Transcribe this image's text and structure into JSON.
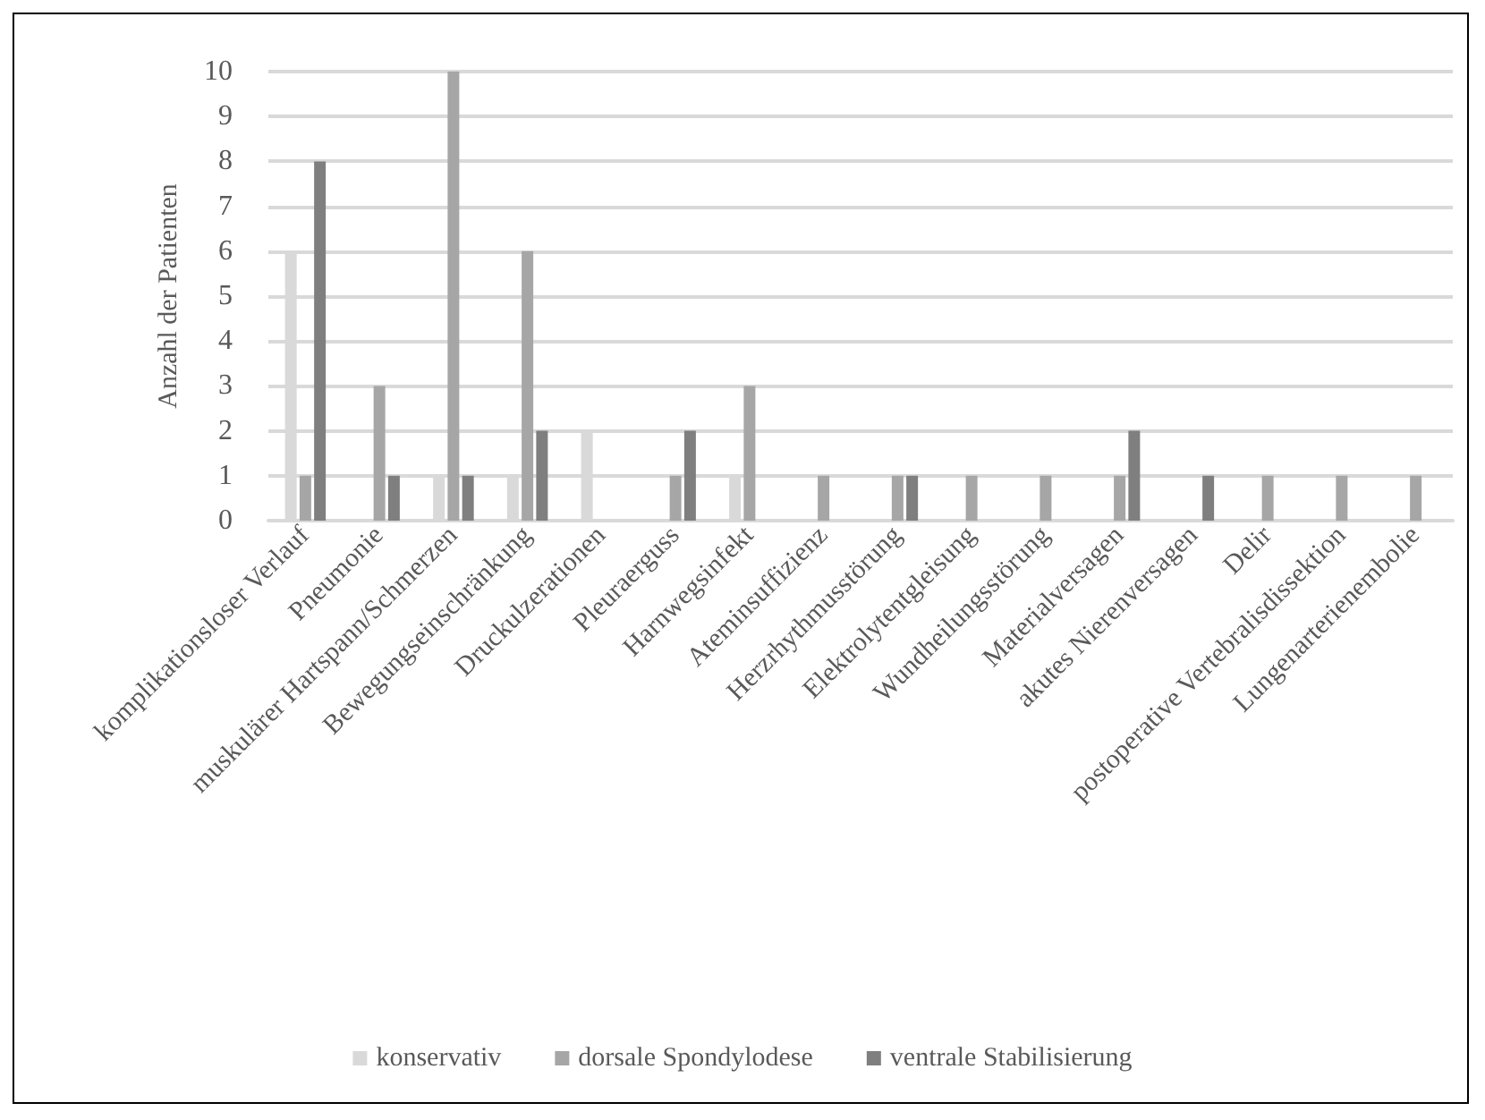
{
  "chart_data": {
    "type": "bar",
    "ylabel": "Anzahl der Patienten",
    "categories": [
      "komplikationsloser Verlauf",
      "Pneumonie",
      "muskulärer Hartspann/Schmerzen",
      "Bewegungseinschränkung",
      "Druckulzerationen",
      "Pleuraerguss",
      "Harnwegsinfekt",
      "Ateminsuffizienz",
      "Herzrhythmusstörung",
      "Elektrolytentgleisung",
      "Wundheilungsstörung",
      "Materialversagen",
      "akutes Nierenversagen",
      "Delir",
      "postoperative Vertebralisdissektion",
      "Lungenarterienembolie"
    ],
    "series": [
      {
        "name": "konservativ",
        "color": "#d9d9d9",
        "values": [
          6,
          0,
          1,
          1,
          2,
          0,
          1,
          0,
          0,
          0,
          0,
          0,
          0,
          0,
          0,
          0
        ]
      },
      {
        "name": "dorsale Spondylodese",
        "color": "#a6a6a6",
        "values": [
          1,
          3,
          10,
          6,
          0,
          1,
          3,
          1,
          1,
          1,
          1,
          1,
          0,
          1,
          1,
          1
        ]
      },
      {
        "name": "ventrale Stabilisierung",
        "color": "#7f7f7f",
        "values": [
          8,
          1,
          1,
          2,
          0,
          2,
          0,
          0,
          1,
          0,
          0,
          2,
          1,
          0,
          0,
          0
        ]
      }
    ],
    "ylim": [
      0,
      10
    ],
    "yticks": [
      0,
      1,
      2,
      3,
      4,
      5,
      6,
      7,
      8,
      9,
      10
    ],
    "grid": "y",
    "legend": "bottom"
  }
}
